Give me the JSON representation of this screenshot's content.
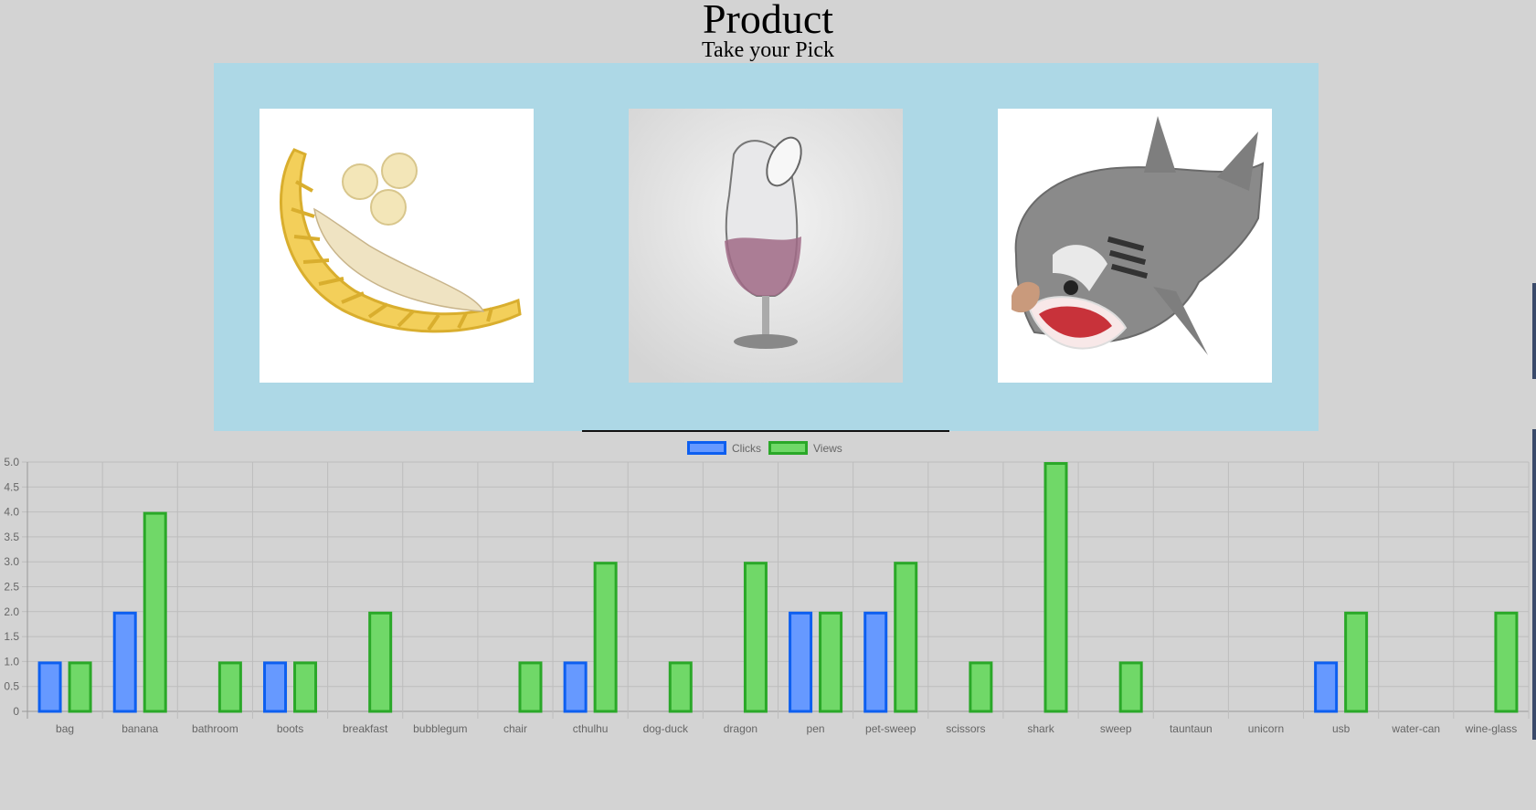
{
  "header": {
    "title": "Product",
    "subtitle": "Take your Pick"
  },
  "products": [
    {
      "name": "banana",
      "icon": "banana-slicer-image"
    },
    {
      "name": "wine-glass",
      "icon": "wine-glass-image"
    },
    {
      "name": "shark",
      "icon": "shark-sleeping-bag-image"
    }
  ],
  "colors": {
    "background": "#d3d3d3",
    "panel": "#add8e6",
    "clicks_fill": "#6699ff",
    "clicks_border": "#0d5ff0",
    "views_fill": "#70d868",
    "views_border": "#2aa828"
  },
  "chart_data": {
    "type": "bar",
    "categories": [
      "bag",
      "banana",
      "bathroom",
      "boots",
      "breakfast",
      "bubblegum",
      "chair",
      "cthulhu",
      "dog-duck",
      "dragon",
      "pen",
      "pet-sweep",
      "scissors",
      "shark",
      "sweep",
      "tauntaun",
      "unicorn",
      "usb",
      "water-can",
      "wine-glass"
    ],
    "series": [
      {
        "name": "Clicks",
        "values": [
          1,
          2,
          0,
          1,
          0,
          0,
          0,
          1,
          0,
          0,
          2,
          2,
          0,
          0,
          0,
          0,
          0,
          1,
          0,
          0
        ]
      },
      {
        "name": "Views",
        "values": [
          1,
          4,
          1,
          1,
          2,
          0,
          1,
          3,
          1,
          3,
          2,
          3,
          1,
          5,
          1,
          0,
          0,
          2,
          0,
          2
        ]
      }
    ],
    "yticks": [
      "0",
      "0.5",
      "1.0",
      "1.5",
      "2.0",
      "2.5",
      "3.0",
      "3.5",
      "4.0",
      "4.5",
      "5.0"
    ],
    "ylim": [
      0,
      5
    ],
    "legend": "top-center",
    "grid": true
  }
}
